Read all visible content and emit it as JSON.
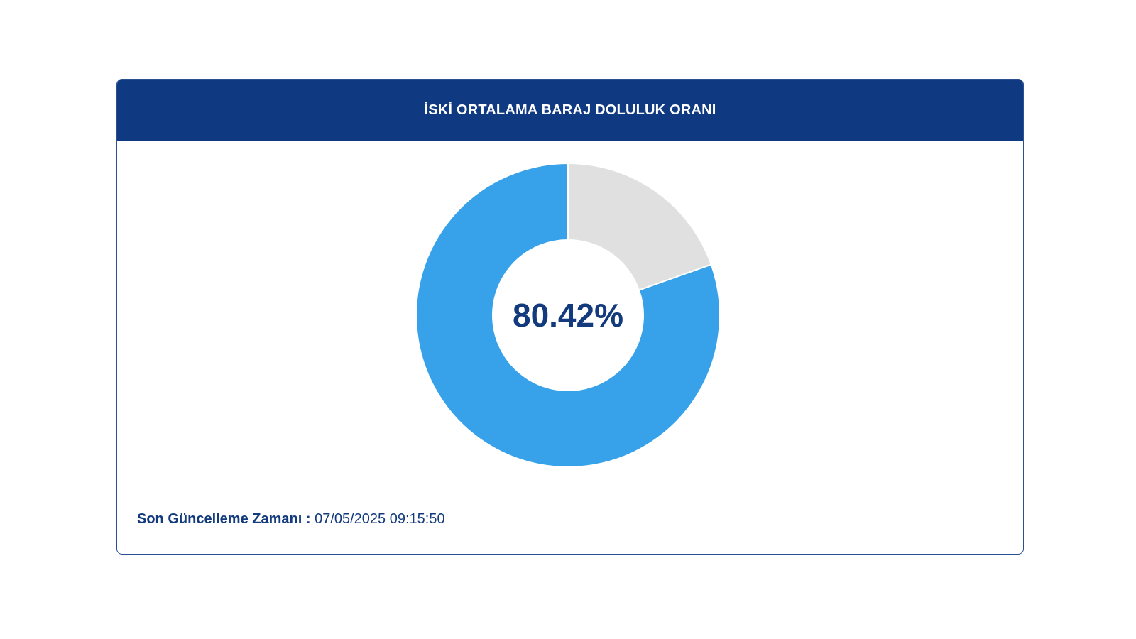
{
  "card": {
    "title": "İSKİ ORTALAMA BARAJ DOLULUK ORANI"
  },
  "chart_data": {
    "type": "pie",
    "donut": true,
    "slices": [
      {
        "value": 80.42,
        "color": "#37a2ea"
      },
      {
        "value": 19.58,
        "color": "#e0e0e0"
      }
    ],
    "center_label": "80.42%"
  },
  "footer": {
    "label": "Son Güncelleme Zamanı :",
    "value": "07/05/2025 09:15:50"
  },
  "colors": {
    "header": "#0f3a82",
    "filled": "#37a2ea",
    "empty": "#e0e0e0",
    "text": "#123a7d"
  }
}
